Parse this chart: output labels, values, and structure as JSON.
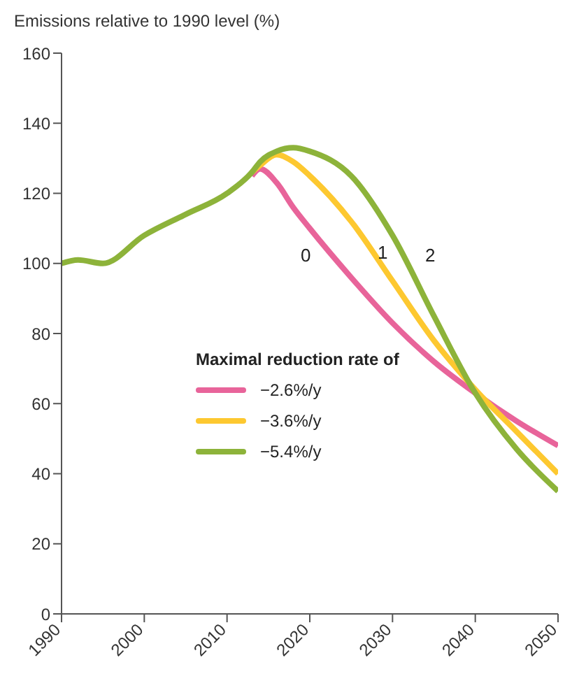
{
  "chart_data": {
    "type": "line",
    "ylabel": "Emissions relative to 1990 level (%)",
    "legend_title": "Maximal reduction rate of",
    "x": [
      1990,
      1992,
      1995,
      2000,
      2005,
      2010,
      2013,
      2014,
      2016,
      2018,
      2020,
      2025,
      2030,
      2035,
      2040,
      2045,
      2050
    ],
    "series": [
      {
        "name": "−2.6%/y",
        "color": "#e8649a",
        "values": [
          null,
          null,
          null,
          null,
          null,
          null,
          125,
          127,
          123,
          116,
          110,
          96,
          83,
          72,
          63,
          55,
          48
        ]
      },
      {
        "name": "−3.6%/y",
        "color": "#fdc830",
        "values": [
          null,
          null,
          null,
          null,
          null,
          null,
          126,
          128,
          131,
          129,
          125,
          112,
          95,
          78,
          64,
          52,
          40
        ]
      },
      {
        "name": "−5.4%/y",
        "color": "#8db33a",
        "values": [
          100,
          101,
          100,
          108,
          114,
          120,
          126,
          129,
          132,
          133,
          132,
          125,
          108,
          85,
          63,
          47,
          35
        ]
      }
    ],
    "xlim": [
      1990,
      2050
    ],
    "xticks": [
      1990,
      2000,
      2010,
      2020,
      2030,
      2040,
      2050
    ],
    "ylim": [
      0,
      160
    ],
    "yticks": [
      0,
      20,
      40,
      60,
      80,
      100,
      120,
      140,
      160
    ],
    "annotations": [
      "0",
      "1",
      "2"
    ],
    "legend": "left",
    "grid": false,
    "marker": "none",
    "line_style": "solid"
  }
}
